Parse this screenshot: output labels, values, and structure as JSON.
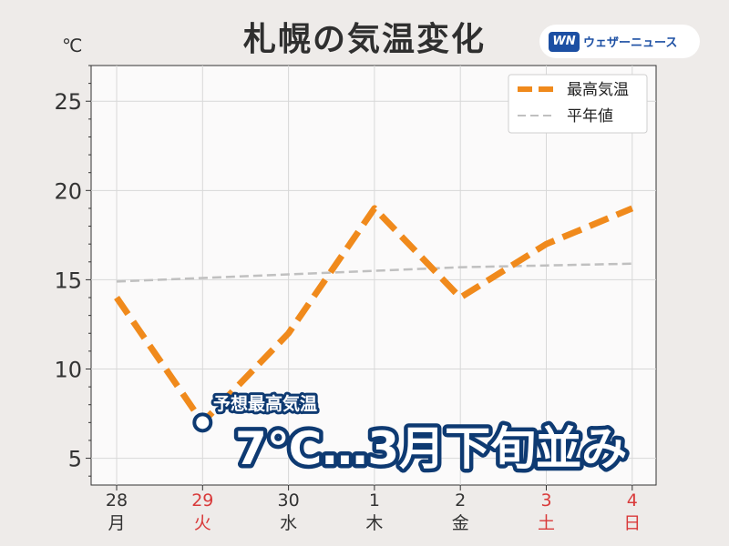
{
  "header": {
    "title": "札幌の気温変化",
    "unit": "℃",
    "brand_logo": "WN",
    "brand_name": "ウェザーニュース"
  },
  "callout": {
    "label": "予想最高気温",
    "headline": "7℃…3月下旬並み"
  },
  "chart_data": {
    "type": "line",
    "title": "札幌の気温変化",
    "ylabel": "℃",
    "ylim": [
      3.5,
      27
    ],
    "yticks": [
      5,
      10,
      15,
      20,
      25
    ],
    "categories": [
      {
        "day": "28",
        "weekday": "月",
        "holiday": false
      },
      {
        "day": "29",
        "weekday": "火",
        "holiday": true
      },
      {
        "day": "30",
        "weekday": "水",
        "holiday": false
      },
      {
        "day": "1",
        "weekday": "木",
        "holiday": false
      },
      {
        "day": "2",
        "weekday": "金",
        "holiday": false
      },
      {
        "day": "3",
        "weekday": "土",
        "holiday": true
      },
      {
        "day": "4",
        "weekday": "日",
        "holiday": true
      }
    ],
    "series": [
      {
        "name": "最高気温",
        "values": [
          14,
          7,
          12,
          19,
          14,
          17,
          19
        ],
        "color": "#f08a1c",
        "style": "dashed-thick"
      },
      {
        "name": "平年値",
        "values": [
          14.9,
          15.1,
          15.3,
          15.5,
          15.7,
          15.8,
          15.9
        ],
        "color": "#c0c0c0",
        "style": "dashed-thin"
      }
    ],
    "highlight": {
      "series": 0,
      "index": 1,
      "value": 7
    },
    "grid": true,
    "legend": "top-right",
    "colors": {
      "holiday": "#d93a3a",
      "axis_text": "#333333",
      "callout_outline": "#0e3a72",
      "plot_bg": "#fbfafa"
    }
  }
}
